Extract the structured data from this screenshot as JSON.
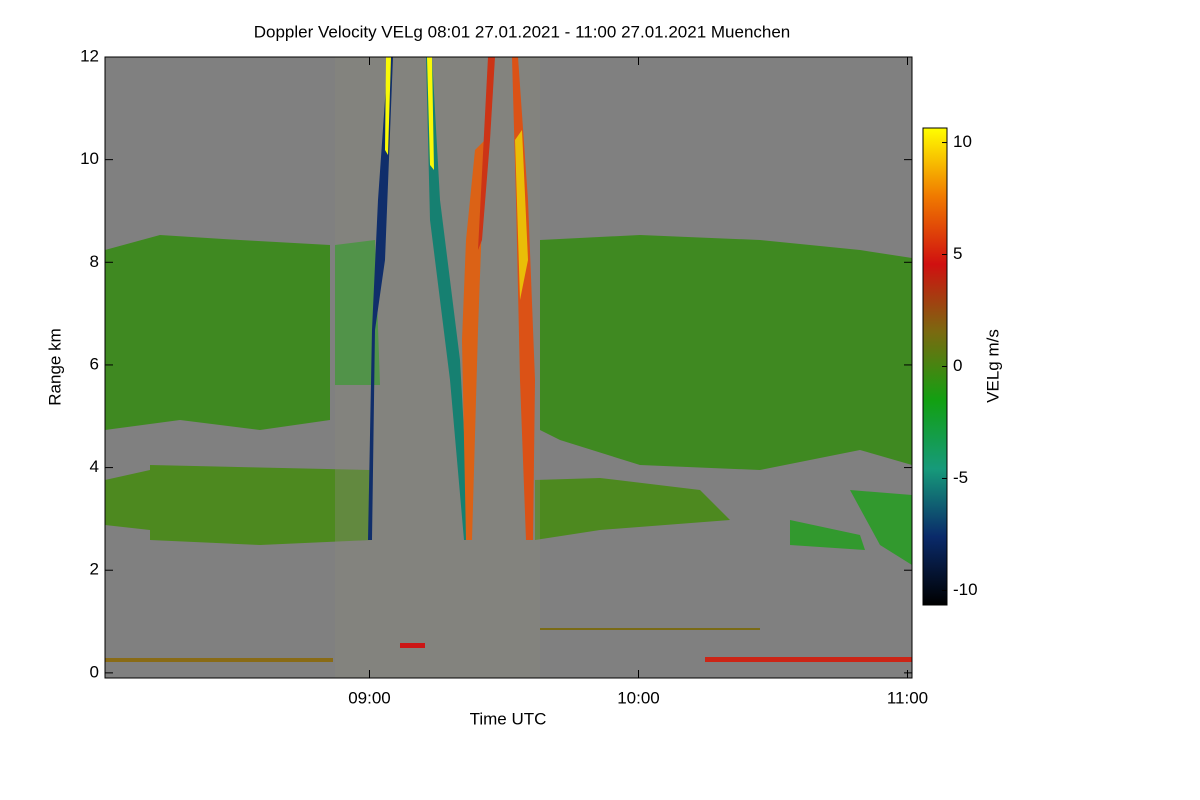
{
  "chart_data": {
    "type": "heatmap",
    "title": "Doppler Velocity VELg   08:01 27.01.2021 - 11:00 27.01.2021 Muenchen",
    "x_label": "Time UTC",
    "y_label": "Range km",
    "xlim": [
      8.0167,
      11.0167
    ],
    "xticks": [
      {
        "value": 9,
        "label": "09:00"
      },
      {
        "value": 10,
        "label": "10:00"
      },
      {
        "value": 11,
        "label": "11:00"
      }
    ],
    "ylim": [
      -0.1,
      12
    ],
    "yticks": [
      0,
      2,
      4,
      6,
      8,
      10,
      12
    ],
    "background": "#808080",
    "colorbar": {
      "label": "VELg m/s",
      "clim": [
        -10.65,
        10.65
      ],
      "ticks": [
        -10,
        -5,
        0,
        5,
        10
      ],
      "colormap": [
        "#000000",
        "#0a2a6a",
        "#169a7a",
        "#12a012",
        "#7a6a10",
        "#d01010",
        "#f07a00",
        "#ffff00"
      ]
    }
  }
}
